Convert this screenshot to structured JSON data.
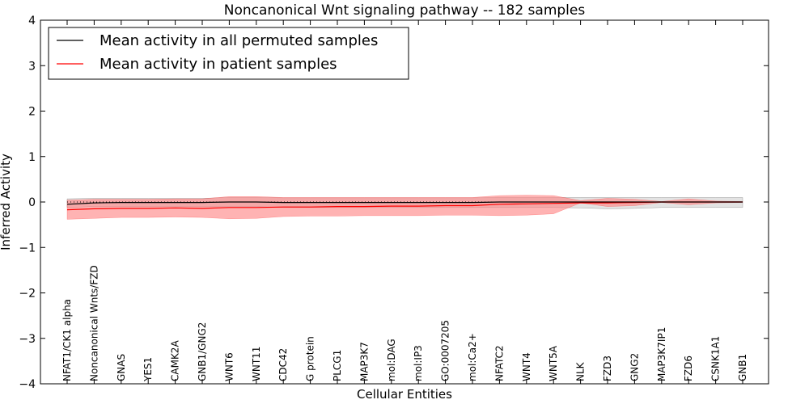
{
  "chart_data": {
    "type": "line",
    "title": "Noncanonical Wnt signaling pathway -- 182 samples",
    "xlabel": "Cellular Entities",
    "ylabel": "Inferred Activity",
    "ylim": [
      -4,
      4
    ],
    "yticks": [
      4,
      3,
      2,
      1,
      0,
      -1,
      -2,
      -3,
      -4
    ],
    "ytick_labels": [
      "4",
      "3",
      "2",
      "1",
      "0",
      "−1",
      "−2",
      "−3",
      "−4"
    ],
    "categories": [
      "NFAT1/CK1 alpha",
      "Noncanonical Wnts/FZD",
      "GNAS",
      "YES1",
      "CAMK2A",
      "GNB1/GNG2",
      "WNT6",
      "WNT11",
      "CDC42",
      "G protein",
      "PLCG1",
      "MAP3K7",
      "mol:DAG",
      "mol:IP3",
      "GO:0007205",
      "mol:Ca2+",
      "NFATC2",
      "WNT4",
      "WNT5A",
      "NLK",
      "FZD3",
      "GNG2",
      "MAP3K7IP1",
      "FZD6",
      "CSNK1A1",
      "GNB1"
    ],
    "series": [
      {
        "name": "Mean activity in all permuted samples",
        "color": "#000000",
        "values": [
          -0.05,
          -0.02,
          -0.01,
          -0.01,
          -0.01,
          -0.01,
          0.0,
          0.0,
          -0.01,
          -0.01,
          -0.01,
          -0.01,
          -0.01,
          -0.01,
          -0.01,
          -0.01,
          0.0,
          0.0,
          0.0,
          0.0,
          0.0,
          0.0,
          0.0,
          0.0,
          0.0,
          0.0
        ],
        "band_low": [
          -0.12,
          -0.1,
          -0.1,
          -0.1,
          -0.1,
          -0.1,
          -0.1,
          -0.1,
          -0.12,
          -0.12,
          -0.12,
          -0.12,
          -0.12,
          -0.12,
          -0.12,
          -0.12,
          -0.12,
          -0.12,
          -0.12,
          -0.13,
          -0.15,
          -0.14,
          -0.12,
          -0.12,
          -0.12,
          -0.12
        ],
        "band_high": [
          0.07,
          0.08,
          0.08,
          0.08,
          0.08,
          0.08,
          0.1,
          0.1,
          0.09,
          0.09,
          0.09,
          0.09,
          0.09,
          0.09,
          0.09,
          0.09,
          0.1,
          0.1,
          0.1,
          0.1,
          0.1,
          0.1,
          0.1,
          0.1,
          0.1,
          0.1
        ]
      },
      {
        "name": "Mean activity in patient samples",
        "color": "#ff0000",
        "fill": "#ff8080",
        "values": [
          -0.17,
          -0.15,
          -0.14,
          -0.14,
          -0.13,
          -0.14,
          -0.12,
          -0.12,
          -0.11,
          -0.11,
          -0.1,
          -0.1,
          -0.09,
          -0.09,
          -0.08,
          -0.08,
          -0.05,
          -0.04,
          -0.03,
          -0.02,
          -0.02,
          -0.01,
          0.0,
          0.0,
          0.0,
          0.0
        ],
        "band_low": [
          -0.38,
          -0.36,
          -0.34,
          -0.34,
          -0.33,
          -0.34,
          -0.37,
          -0.36,
          -0.32,
          -0.31,
          -0.31,
          -0.3,
          -0.3,
          -0.3,
          -0.29,
          -0.29,
          -0.3,
          -0.29,
          -0.26,
          -0.02,
          -0.1,
          -0.08,
          -0.01,
          -0.06,
          -0.02,
          -0.01
        ],
        "band_high": [
          0.04,
          0.06,
          0.06,
          0.06,
          0.07,
          0.07,
          0.12,
          0.12,
          0.1,
          0.1,
          0.1,
          0.1,
          0.1,
          0.1,
          0.1,
          0.1,
          0.14,
          0.15,
          0.14,
          0.03,
          0.08,
          0.06,
          0.01,
          0.07,
          0.02,
          0.01
        ]
      }
    ],
    "reference_line": {
      "y": 0,
      "style": "dotted"
    },
    "legend": {
      "position": "top-left",
      "entries": [
        "Mean activity in all permuted samples",
        "Mean activity in patient samples"
      ]
    },
    "grid": false
  }
}
